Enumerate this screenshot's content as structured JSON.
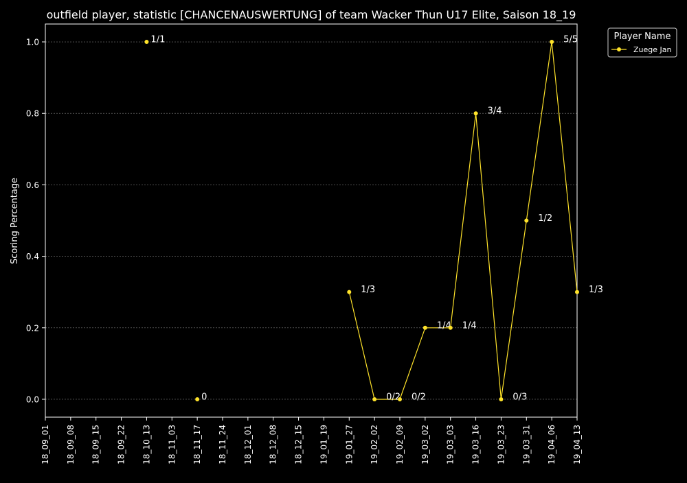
{
  "colors": {
    "background": "#000000",
    "foreground": "#ffffff",
    "series": "#ffe32a",
    "grid": "#7f7f7f"
  },
  "chart_data": {
    "type": "line",
    "title": "outfield player, statistic [CHANCENAUSWERTUNG] of team Wacker Thun U17 Elite, Saison 18_19",
    "xlabel": "",
    "ylabel": "Scoring Percentage",
    "categories": [
      "18_09_01",
      "18_09_08",
      "18_09_15",
      "18_09_22",
      "18_10_13",
      "18_11_03",
      "18_11_17",
      "18_11_24",
      "18_12_01",
      "18_12_08",
      "18_12_15",
      "19_01_19",
      "19_01_27",
      "19_02_02",
      "19_02_09",
      "19_03_02",
      "19_03_03",
      "19_03_16",
      "19_03_23",
      "19_03_31",
      "19_04_06",
      "19_04_13"
    ],
    "y_ticks": [
      "0.0",
      "0.2",
      "0.4",
      "0.6",
      "0.8",
      "1.0"
    ],
    "ylim": [
      -0.05,
      1.05
    ],
    "grid": true,
    "legend": {
      "title": "Player Name",
      "position": "outside-top-right"
    },
    "series": [
      {
        "name": "Zuege Jan",
        "points": [
          {
            "x": "18_10_13",
            "y": 1.0,
            "label": "1/1"
          },
          {
            "x": "18_11_17",
            "y": 0.0,
            "label": "0"
          },
          {
            "x": "19_01_27",
            "y": 0.3,
            "label": "1/3"
          },
          {
            "x": "19_02_02",
            "y": 0.0,
            "label": "0/2"
          },
          {
            "x": "19_02_09",
            "y": 0.0,
            "label": "0/2"
          },
          {
            "x": "19_03_02",
            "y": 0.2,
            "label": "1/4"
          },
          {
            "x": "19_03_03",
            "y": 0.2,
            "label": "1/4"
          },
          {
            "x": "19_03_16",
            "y": 0.8,
            "label": "3/4"
          },
          {
            "x": "19_03_23",
            "y": 0.0,
            "label": "0/3"
          },
          {
            "x": "19_03_31",
            "y": 0.5,
            "label": "1/2"
          },
          {
            "x": "19_04_06",
            "y": 1.0,
            "label": "5/5"
          },
          {
            "x": "19_04_13",
            "y": 0.3,
            "label": "1/3"
          }
        ],
        "line_from": "19_01_27"
      }
    ]
  }
}
